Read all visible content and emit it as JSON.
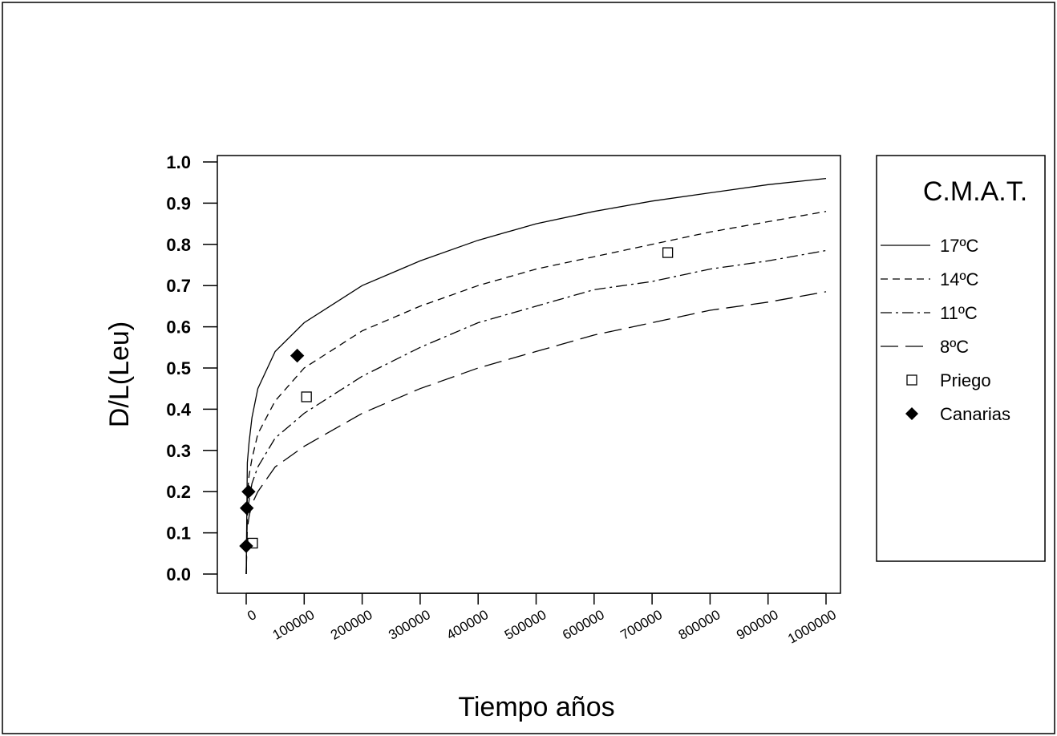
{
  "chart_data": {
    "type": "line",
    "title": "",
    "xlabel": "Tiempo años",
    "ylabel": "D/L(Leu)",
    "xlim": [
      -50000,
      1000000
    ],
    "ylim": [
      0.0,
      1.0
    ],
    "x_ticks": [
      0,
      100000,
      200000,
      300000,
      400000,
      500000,
      600000,
      700000,
      800000,
      900000,
      1000000
    ],
    "x_tick_labels": [
      "0",
      "100000",
      "200000",
      "300000",
      "400000",
      "500000",
      "600000",
      "700000",
      "800000",
      "900000",
      "1000000"
    ],
    "y_ticks": [
      0.0,
      0.1,
      0.2,
      0.3,
      0.4,
      0.5,
      0.6,
      0.7,
      0.8,
      0.9,
      1.0
    ],
    "y_tick_labels": [
      "0.0",
      "0.1",
      "0.2",
      "0.3",
      "0.4",
      "0.5",
      "0.6",
      "0.7",
      "0.8",
      "0.9",
      "1.0"
    ],
    "grid": false,
    "legend": {
      "title": "C.M.A.T.",
      "placement": "right"
    },
    "series": [
      {
        "name": "17ºC",
        "kind": "line",
        "style": "solid",
        "x": [
          0,
          2000,
          5000,
          10000,
          20000,
          50000,
          100000,
          200000,
          300000,
          400000,
          500000,
          600000,
          700000,
          800000,
          900000,
          1000000
        ],
        "y": [
          0.0,
          0.27,
          0.32,
          0.38,
          0.45,
          0.54,
          0.61,
          0.7,
          0.76,
          0.81,
          0.85,
          0.88,
          0.905,
          0.925,
          0.945,
          0.96
        ]
      },
      {
        "name": "14ºC",
        "kind": "line",
        "style": "dashed",
        "x": [
          0,
          2000,
          5000,
          10000,
          20000,
          50000,
          100000,
          200000,
          300000,
          400000,
          500000,
          600000,
          700000,
          800000,
          900000,
          1000000
        ],
        "y": [
          0.0,
          0.19,
          0.24,
          0.28,
          0.34,
          0.42,
          0.5,
          0.59,
          0.65,
          0.7,
          0.74,
          0.77,
          0.8,
          0.83,
          0.855,
          0.88
        ]
      },
      {
        "name": "11ºC",
        "kind": "line",
        "style": "dash-dot",
        "x": [
          0,
          2000,
          5000,
          10000,
          20000,
          50000,
          100000,
          200000,
          300000,
          400000,
          500000,
          600000,
          700000,
          800000,
          900000,
          1000000
        ],
        "y": [
          0.0,
          0.14,
          0.18,
          0.22,
          0.26,
          0.33,
          0.39,
          0.48,
          0.55,
          0.61,
          0.65,
          0.69,
          0.71,
          0.74,
          0.76,
          0.785
        ]
      },
      {
        "name": "8ºC",
        "kind": "line",
        "style": "long-dash",
        "x": [
          0,
          2000,
          5000,
          10000,
          20000,
          50000,
          100000,
          200000,
          300000,
          400000,
          500000,
          600000,
          700000,
          800000,
          900000,
          1000000
        ],
        "y": [
          0.0,
          0.11,
          0.14,
          0.17,
          0.2,
          0.26,
          0.31,
          0.39,
          0.45,
          0.5,
          0.54,
          0.58,
          0.61,
          0.64,
          0.66,
          0.685
        ]
      },
      {
        "name": "Priego",
        "kind": "scatter",
        "marker": "open-square",
        "x": [
          11000,
          104000,
          727000
        ],
        "y": [
          0.075,
          0.43,
          0.78
        ]
      },
      {
        "name": "Canarias",
        "kind": "scatter",
        "marker": "filled-diamond",
        "x": [
          0,
          1000,
          4000,
          88000
        ],
        "y": [
          0.068,
          0.16,
          0.2,
          0.53
        ]
      }
    ]
  }
}
